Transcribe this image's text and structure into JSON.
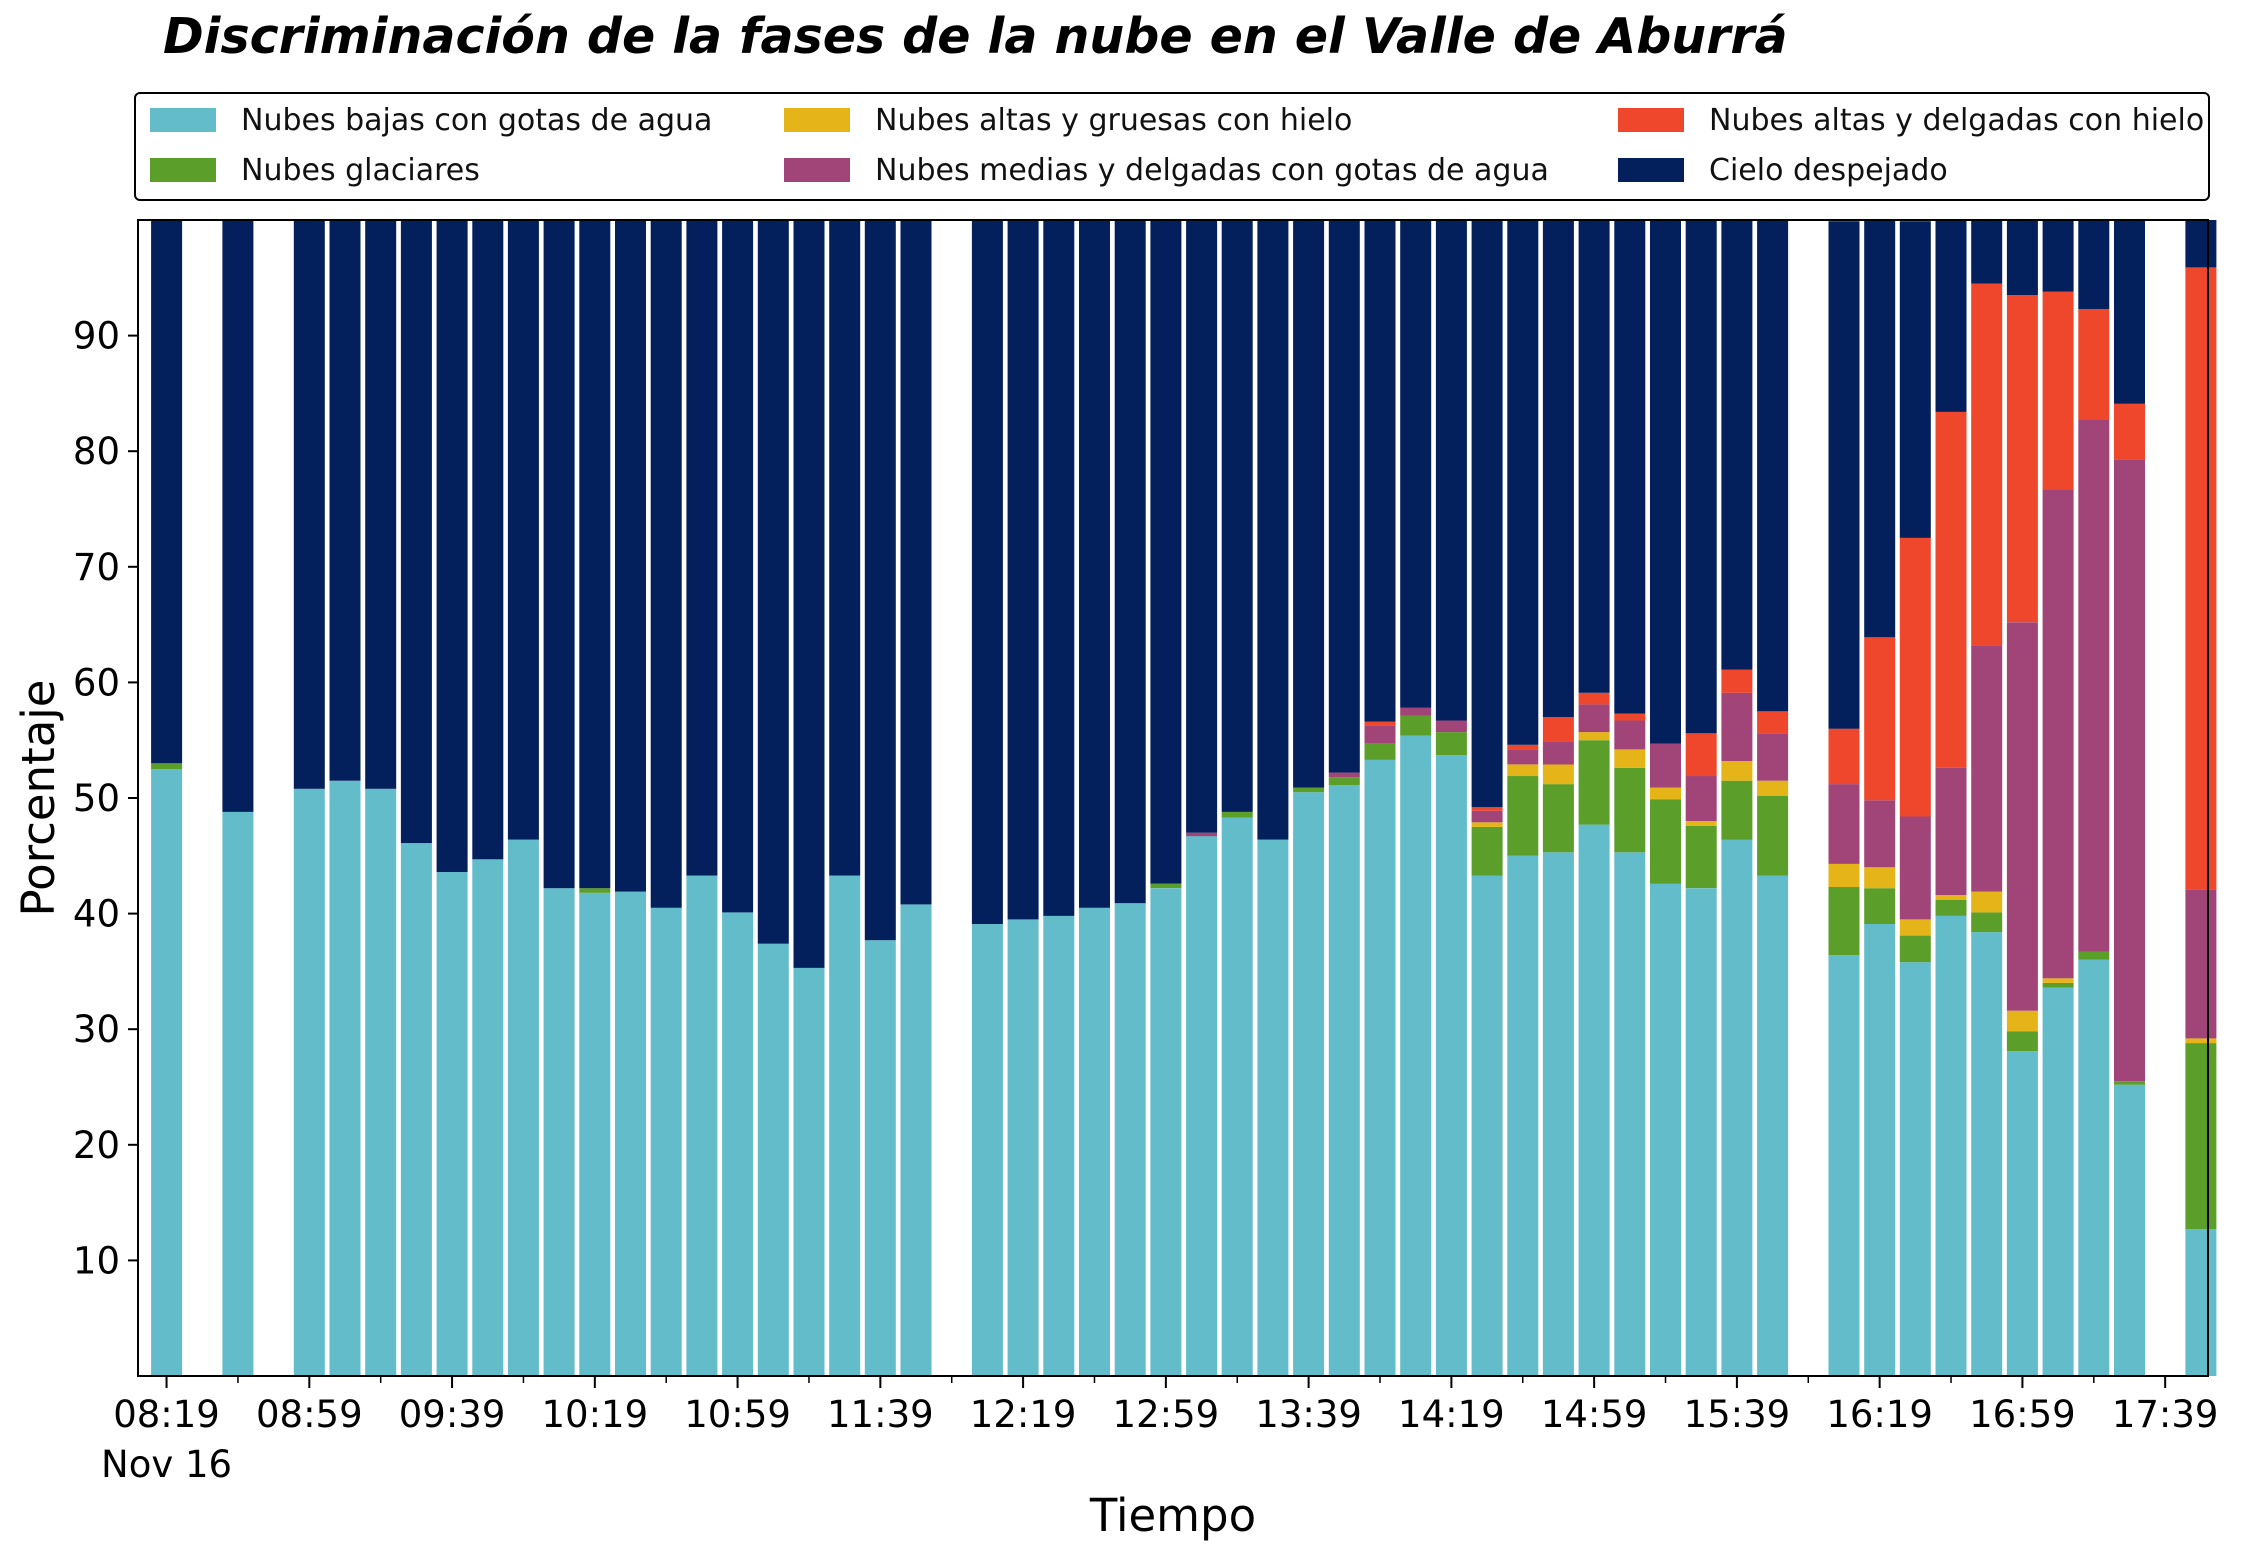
{
  "chart_data": {
    "type": "bar",
    "stacked": true,
    "title": "Discriminación de la fases de la nube en el Valle de Aburrá",
    "xlabel": "Tiempo",
    "ylabel": "Porcentaje",
    "ylim": [
      0,
      100
    ],
    "yticks": [
      10,
      20,
      30,
      40,
      50,
      60,
      70,
      80,
      90
    ],
    "x_range_minutes": [
      "08:11",
      "17:51"
    ],
    "x_tick_labels": [
      {
        "time": "08:19",
        "label": "08:19",
        "sublabel": "Nov 16"
      },
      {
        "time": "08:59",
        "label": "08:59"
      },
      {
        "time": "09:39",
        "label": "09:39"
      },
      {
        "time": "10:19",
        "label": "10:19"
      },
      {
        "time": "10:59",
        "label": "10:59"
      },
      {
        "time": "11:39",
        "label": "11:39"
      },
      {
        "time": "12:19",
        "label": "12:19"
      },
      {
        "time": "12:59",
        "label": "12:59"
      },
      {
        "time": "13:39",
        "label": "13:39"
      },
      {
        "time": "14:19",
        "label": "14:19"
      },
      {
        "time": "14:59",
        "label": "14:59"
      },
      {
        "time": "15:39",
        "label": "15:39"
      },
      {
        "time": "16:19",
        "label": "16:19"
      },
      {
        "time": "16:59",
        "label": "16:59"
      },
      {
        "time": "17:39",
        "label": "17:39"
      }
    ],
    "minor_ticks_every_minutes": 20,
    "legend_placement": "top, outside, 3 columns",
    "series": [
      {
        "name": "Nubes bajas con gotas de agua",
        "color": "#63bcc9"
      },
      {
        "name": "Nubes glaciares",
        "color": "#5b9f2a"
      },
      {
        "name": "Nubes altas y gruesas con hielo",
        "color": "#e5b418"
      },
      {
        "name": "Nubes medias y delgadas con gotas de agua",
        "color": "#a14579"
      },
      {
        "name": "Nubes altas y delgadas con hielo",
        "color": "#ee472b"
      },
      {
        "name": "Cielo despejado",
        "color": "#031f5c"
      }
    ],
    "bars": [
      {
        "time": "08:19",
        "values": [
          52.5,
          0.5,
          0,
          0,
          0,
          47.0
        ]
      },
      {
        "time": "08:39",
        "values": [
          48.8,
          0,
          0,
          0,
          0,
          51.2
        ]
      },
      {
        "time": "08:59",
        "values": [
          50.8,
          0,
          0,
          0,
          0,
          49.2
        ]
      },
      {
        "time": "09:09",
        "values": [
          51.5,
          0,
          0,
          0,
          0,
          48.5
        ]
      },
      {
        "time": "09:19",
        "values": [
          50.8,
          0,
          0,
          0,
          0,
          49.2
        ]
      },
      {
        "time": "09:29",
        "values": [
          46.1,
          0,
          0,
          0,
          0,
          53.9
        ]
      },
      {
        "time": "09:39",
        "values": [
          43.6,
          0,
          0,
          0,
          0,
          56.4
        ]
      },
      {
        "time": "09:49",
        "values": [
          44.7,
          0,
          0,
          0,
          0,
          55.3
        ]
      },
      {
        "time": "09:59",
        "values": [
          46.4,
          0,
          0,
          0,
          0,
          53.6
        ]
      },
      {
        "time": "10:09",
        "values": [
          42.2,
          0,
          0,
          0,
          0,
          57.8
        ]
      },
      {
        "time": "10:19",
        "values": [
          41.8,
          0.4,
          0,
          0,
          0,
          57.8
        ]
      },
      {
        "time": "10:29",
        "values": [
          41.9,
          0,
          0,
          0,
          0,
          58.1
        ]
      },
      {
        "time": "10:39",
        "values": [
          40.5,
          0,
          0,
          0,
          0,
          59.5
        ]
      },
      {
        "time": "10:49",
        "values": [
          43.3,
          0,
          0,
          0,
          0,
          56.7
        ]
      },
      {
        "time": "10:59",
        "values": [
          40.1,
          0,
          0,
          0,
          0,
          59.9
        ]
      },
      {
        "time": "11:09",
        "values": [
          37.4,
          0,
          0,
          0,
          0,
          62.6
        ]
      },
      {
        "time": "11:19",
        "values": [
          35.3,
          0,
          0,
          0,
          0,
          64.7
        ]
      },
      {
        "time": "11:29",
        "values": [
          43.3,
          0,
          0,
          0,
          0,
          56.7
        ]
      },
      {
        "time": "11:39",
        "values": [
          37.7,
          0,
          0,
          0,
          0,
          62.3
        ]
      },
      {
        "time": "11:49",
        "values": [
          40.8,
          0,
          0,
          0,
          0,
          59.2
        ]
      },
      {
        "time": "12:09",
        "values": [
          39.1,
          0,
          0,
          0,
          0,
          60.9
        ]
      },
      {
        "time": "12:19",
        "values": [
          39.5,
          0,
          0,
          0,
          0,
          60.5
        ]
      },
      {
        "time": "12:29",
        "values": [
          39.8,
          0,
          0,
          0,
          0,
          60.2
        ]
      },
      {
        "time": "12:39",
        "values": [
          40.5,
          0,
          0,
          0,
          0,
          59.5
        ]
      },
      {
        "time": "12:49",
        "values": [
          40.9,
          0,
          0,
          0,
          0,
          59.1
        ]
      },
      {
        "time": "12:59",
        "values": [
          42.2,
          0.4,
          0,
          0,
          0,
          57.4
        ]
      },
      {
        "time": "13:09",
        "values": [
          46.7,
          0,
          0,
          0.3,
          0,
          53.0
        ]
      },
      {
        "time": "13:19",
        "values": [
          48.3,
          0.5,
          0,
          0,
          0,
          51.2
        ]
      },
      {
        "time": "13:29",
        "values": [
          46.4,
          0,
          0,
          0,
          0,
          53.6
        ]
      },
      {
        "time": "13:39",
        "values": [
          50.5,
          0.4,
          0,
          0,
          0,
          49.1
        ]
      },
      {
        "time": "13:49",
        "values": [
          51.1,
          0.7,
          0,
          0.4,
          0,
          47.8
        ]
      },
      {
        "time": "13:59",
        "values": [
          53.3,
          1.4,
          0,
          1.6,
          0.3,
          43.4
        ]
      },
      {
        "time": "14:09",
        "values": [
          55.4,
          1.7,
          0,
          0.7,
          0,
          42.2
        ]
      },
      {
        "time": "14:19",
        "values": [
          53.7,
          2.0,
          0,
          1.0,
          0,
          43.3
        ]
      },
      {
        "time": "14:29",
        "values": [
          43.3,
          4.2,
          0.4,
          1.0,
          0.3,
          50.8
        ]
      },
      {
        "time": "14:39",
        "values": [
          45.0,
          6.9,
          1.0,
          1.3,
          0.4,
          45.4
        ]
      },
      {
        "time": "14:49",
        "values": [
          45.3,
          5.9,
          1.7,
          2.0,
          2.1,
          43.0
        ]
      },
      {
        "time": "14:59",
        "values": [
          47.7,
          7.3,
          0.7,
          2.4,
          1.0,
          40.9
        ]
      },
      {
        "time": "15:09",
        "values": [
          45.3,
          7.3,
          1.6,
          2.5,
          0.6,
          42.7
        ]
      },
      {
        "time": "15:19",
        "values": [
          42.6,
          7.3,
          1.0,
          3.8,
          0,
          45.3
        ]
      },
      {
        "time": "15:29",
        "values": [
          42.2,
          5.4,
          0.4,
          3.9,
          3.7,
          44.4
        ]
      },
      {
        "time": "15:39",
        "values": [
          46.4,
          5.1,
          1.7,
          5.9,
          2.0,
          38.9
        ]
      },
      {
        "time": "15:49",
        "values": [
          43.3,
          6.9,
          1.3,
          4.1,
          1.9,
          42.5
        ]
      },
      {
        "time": "16:09",
        "values": [
          36.4,
          5.9,
          2.0,
          6.9,
          4.8,
          43.9
        ]
      },
      {
        "time": "16:19",
        "values": [
          39.1,
          3.1,
          1.8,
          5.8,
          14.1,
          36.1
        ]
      },
      {
        "time": "16:29",
        "values": [
          35.8,
          2.3,
          1.4,
          8.9,
          24.1,
          27.4
        ]
      },
      {
        "time": "16:39",
        "values": [
          39.8,
          1.4,
          0.4,
          11.0,
          30.8,
          16.6
        ]
      },
      {
        "time": "16:49",
        "values": [
          38.4,
          1.7,
          1.8,
          21.3,
          31.3,
          5.5
        ]
      },
      {
        "time": "16:59",
        "values": [
          28.1,
          1.7,
          1.8,
          33.6,
          28.3,
          6.5
        ]
      },
      {
        "time": "17:09",
        "values": [
          33.6,
          0.4,
          0.4,
          42.3,
          17.1,
          6.2
        ]
      },
      {
        "time": "17:19",
        "values": [
          36.0,
          0.7,
          0,
          46.0,
          9.6,
          7.7
        ]
      },
      {
        "time": "17:29",
        "values": [
          25.2,
          0.3,
          0,
          53.8,
          4.8,
          15.9
        ]
      },
      {
        "time": "17:49",
        "values": [
          12.7,
          16.1,
          0.4,
          12.9,
          53.8,
          4.1
        ]
      }
    ]
  }
}
